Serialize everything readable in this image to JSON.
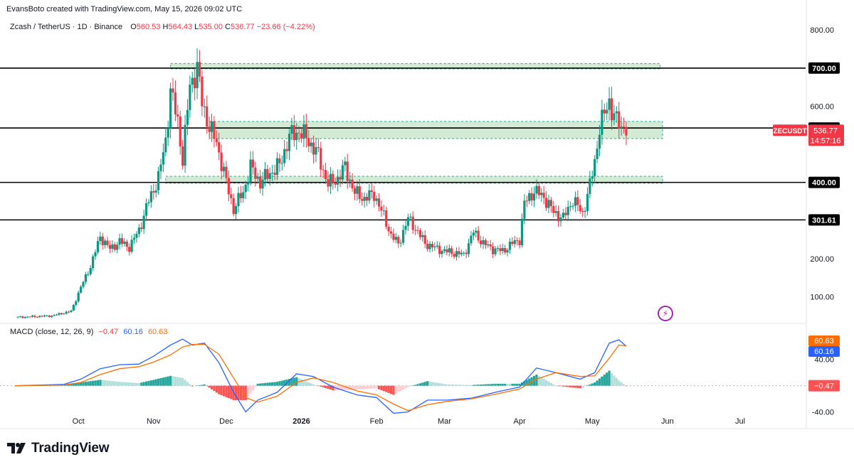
{
  "attribution": "EvansBoto created with TradingView.com, May 15, 2026 09:02 UTC",
  "legend": {
    "symbol": "Zcash / TetherUS · 1D · Binance",
    "open_label": "O",
    "open": "560.53",
    "high_label": "H",
    "high": "564.43",
    "low_label": "L",
    "low": "535.00",
    "close_label": "C",
    "close": "536.77",
    "change": "−23.66 (−4.22%)"
  },
  "macd_legend": {
    "title": "MACD (close, 12, 26, 9)",
    "hist": "−0.47",
    "macd": "60.16",
    "signal": "60.63"
  },
  "brand": {
    "name": "TradingView"
  },
  "chart_data": [
    {
      "type": "candlestick",
      "title": "Zcash / TetherUS · 1D · Binance",
      "x_ticks": [
        "Oct",
        "Nov",
        "Dec",
        "2026",
        "Feb",
        "Mar",
        "Apr",
        "May",
        "Jun",
        "Jul"
      ],
      "y_ticks": [
        100,
        200,
        600,
        800
      ],
      "ylim": [
        30,
        860
      ],
      "grid": false,
      "colors": {
        "up": "#089981",
        "down": "#f23645"
      },
      "levels": [
        {
          "label": "700.00",
          "value": 700
        },
        {
          "label": "542.80",
          "value": 542.8
        },
        {
          "label": "400.00",
          "value": 400
        },
        {
          "label": "301.61",
          "value": 301.61
        }
      ],
      "zones": [
        {
          "from": 698,
          "to": 712
        },
        {
          "from": 515,
          "to": 560
        },
        {
          "from": 398,
          "to": 416
        }
      ],
      "current_price": {
        "symbol": "ZECUSDT",
        "price": "536.77",
        "countdown": "14:57:16"
      },
      "close_path": [
        {
          "x": "2025-09-05",
          "y": 46
        },
        {
          "x": "2025-09-20",
          "y": 50
        },
        {
          "x": "2025-09-28",
          "y": 62
        },
        {
          "x": "2025-10-02",
          "y": 125
        },
        {
          "x": "2025-10-06",
          "y": 180
        },
        {
          "x": "2025-10-10",
          "y": 258
        },
        {
          "x": "2025-10-14",
          "y": 225
        },
        {
          "x": "2025-10-18",
          "y": 245
        },
        {
          "x": "2025-10-22",
          "y": 230
        },
        {
          "x": "2025-10-26",
          "y": 275
        },
        {
          "x": "2025-10-30",
          "y": 352
        },
        {
          "x": "2025-11-03",
          "y": 412
        },
        {
          "x": "2025-11-06",
          "y": 510
        },
        {
          "x": "2025-11-08",
          "y": 640
        },
        {
          "x": "2025-11-11",
          "y": 560
        },
        {
          "x": "2025-11-13",
          "y": 460
        },
        {
          "x": "2025-11-16",
          "y": 655
        },
        {
          "x": "2025-11-19",
          "y": 700
        },
        {
          "x": "2025-11-21",
          "y": 610
        },
        {
          "x": "2025-11-24",
          "y": 545
        },
        {
          "x": "2025-11-27",
          "y": 505
        },
        {
          "x": "2025-12-01",
          "y": 400
        },
        {
          "x": "2025-12-04",
          "y": 330
        },
        {
          "x": "2025-12-08",
          "y": 375
        },
        {
          "x": "2025-12-11",
          "y": 440
        },
        {
          "x": "2025-12-15",
          "y": 400
        },
        {
          "x": "2025-12-19",
          "y": 425
        },
        {
          "x": "2025-12-23",
          "y": 445
        },
        {
          "x": "2025-12-27",
          "y": 520
        },
        {
          "x": "2025-12-31",
          "y": 535
        },
        {
          "x": "2026-01-04",
          "y": 510
        },
        {
          "x": "2026-01-08",
          "y": 470
        },
        {
          "x": "2026-01-12",
          "y": 395
        },
        {
          "x": "2026-01-16",
          "y": 410
        },
        {
          "x": "2026-01-19",
          "y": 440
        },
        {
          "x": "2026-01-23",
          "y": 372
        },
        {
          "x": "2026-01-27",
          "y": 358
        },
        {
          "x": "2026-01-31",
          "y": 370
        },
        {
          "x": "2026-02-04",
          "y": 310
        },
        {
          "x": "2026-02-07",
          "y": 262
        },
        {
          "x": "2026-02-10",
          "y": 238
        },
        {
          "x": "2026-02-14",
          "y": 305
        },
        {
          "x": "2026-02-17",
          "y": 280
        },
        {
          "x": "2026-02-21",
          "y": 240
        },
        {
          "x": "2026-02-25",
          "y": 228
        },
        {
          "x": "2026-03-01",
          "y": 220
        },
        {
          "x": "2026-03-05",
          "y": 215
        },
        {
          "x": "2026-03-09",
          "y": 210
        },
        {
          "x": "2026-03-13",
          "y": 270
        },
        {
          "x": "2026-03-17",
          "y": 240
        },
        {
          "x": "2026-03-21",
          "y": 225
        },
        {
          "x": "2026-03-25",
          "y": 220
        },
        {
          "x": "2026-03-29",
          "y": 240
        },
        {
          "x": "2026-04-01",
          "y": 250
        },
        {
          "x": "2026-04-03",
          "y": 345
        },
        {
          "x": "2026-04-07",
          "y": 378
        },
        {
          "x": "2026-04-11",
          "y": 362
        },
        {
          "x": "2026-04-15",
          "y": 322
        },
        {
          "x": "2026-04-19",
          "y": 306
        },
        {
          "x": "2026-04-23",
          "y": 355
        },
        {
          "x": "2026-04-27",
          "y": 318
        },
        {
          "x": "2026-04-30",
          "y": 392
        },
        {
          "x": "2026-05-02",
          "y": 455
        },
        {
          "x": "2026-05-04",
          "y": 545
        },
        {
          "x": "2026-05-06",
          "y": 578
        },
        {
          "x": "2026-05-08",
          "y": 615
        },
        {
          "x": "2026-05-10",
          "y": 570
        },
        {
          "x": "2026-05-12",
          "y": 555
        },
        {
          "x": "2026-05-13",
          "y": 540
        },
        {
          "x": "2026-05-14",
          "y": 560.53
        },
        {
          "x": "2026-05-15",
          "y": 536.77
        }
      ]
    },
    {
      "type": "line",
      "title": "MACD (close, 12, 26, 9)",
      "y_ticks": [
        40,
        -40
      ],
      "ylim": [
        -60,
        95
      ],
      "series": [
        {
          "name": "MACD",
          "color": "#2962ff",
          "values": [
            {
              "x": "2025-09-05",
              "y": 0
            },
            {
              "x": "2025-09-25",
              "y": 2
            },
            {
              "x": "2025-10-02",
              "y": 10
            },
            {
              "x": "2025-10-10",
              "y": 26
            },
            {
              "x": "2025-10-18",
              "y": 32
            },
            {
              "x": "2025-10-26",
              "y": 33
            },
            {
              "x": "2025-11-01",
              "y": 45
            },
            {
              "x": "2025-11-08",
              "y": 62
            },
            {
              "x": "2025-11-13",
              "y": 71
            },
            {
              "x": "2025-11-17",
              "y": 62
            },
            {
              "x": "2025-11-22",
              "y": 65
            },
            {
              "x": "2025-11-28",
              "y": 35
            },
            {
              "x": "2025-12-04",
              "y": -10
            },
            {
              "x": "2025-12-09",
              "y": -40
            },
            {
              "x": "2025-12-14",
              "y": -22
            },
            {
              "x": "2025-12-22",
              "y": -10
            },
            {
              "x": "2025-12-30",
              "y": 18
            },
            {
              "x": "2026-01-06",
              "y": 14
            },
            {
              "x": "2026-01-14",
              "y": -2
            },
            {
              "x": "2026-01-24",
              "y": -14
            },
            {
              "x": "2026-02-01",
              "y": -18
            },
            {
              "x": "2026-02-08",
              "y": -42
            },
            {
              "x": "2026-02-14",
              "y": -40
            },
            {
              "x": "2026-02-22",
              "y": -22
            },
            {
              "x": "2026-03-02",
              "y": -22
            },
            {
              "x": "2026-03-12",
              "y": -19
            },
            {
              "x": "2026-03-22",
              "y": -10
            },
            {
              "x": "2026-04-01",
              "y": -2
            },
            {
              "x": "2026-04-08",
              "y": 27
            },
            {
              "x": "2026-04-16",
              "y": 20
            },
            {
              "x": "2026-04-26",
              "y": 10
            },
            {
              "x": "2026-05-02",
              "y": 20
            },
            {
              "x": "2026-05-08",
              "y": 65
            },
            {
              "x": "2026-05-12",
              "y": 70
            },
            {
              "x": "2026-05-15",
              "y": 60.16
            }
          ]
        },
        {
          "name": "Signal",
          "color": "#ff6d00",
          "values": [
            {
              "x": "2025-09-05",
              "y": 0
            },
            {
              "x": "2025-09-25",
              "y": 1
            },
            {
              "x": "2025-10-02",
              "y": 5
            },
            {
              "x": "2025-10-10",
              "y": 17
            },
            {
              "x": "2025-10-18",
              "y": 26
            },
            {
              "x": "2025-10-26",
              "y": 29
            },
            {
              "x": "2025-11-01",
              "y": 36
            },
            {
              "x": "2025-11-08",
              "y": 47
            },
            {
              "x": "2025-11-13",
              "y": 59
            },
            {
              "x": "2025-11-17",
              "y": 63
            },
            {
              "x": "2025-11-22",
              "y": 63
            },
            {
              "x": "2025-11-28",
              "y": 48
            },
            {
              "x": "2025-12-04",
              "y": 12
            },
            {
              "x": "2025-12-09",
              "y": -18
            },
            {
              "x": "2025-12-14",
              "y": -25
            },
            {
              "x": "2025-12-22",
              "y": -16
            },
            {
              "x": "2025-12-30",
              "y": 5
            },
            {
              "x": "2026-01-06",
              "y": 12
            },
            {
              "x": "2026-01-14",
              "y": 5
            },
            {
              "x": "2026-01-24",
              "y": -8
            },
            {
              "x": "2026-02-01",
              "y": -14
            },
            {
              "x": "2026-02-08",
              "y": -28
            },
            {
              "x": "2026-02-14",
              "y": -38
            },
            {
              "x": "2026-02-22",
              "y": -29
            },
            {
              "x": "2026-03-02",
              "y": -24
            },
            {
              "x": "2026-03-12",
              "y": -20
            },
            {
              "x": "2026-03-22",
              "y": -13
            },
            {
              "x": "2026-04-01",
              "y": -5
            },
            {
              "x": "2026-04-08",
              "y": 10
            },
            {
              "x": "2026-04-16",
              "y": 20
            },
            {
              "x": "2026-04-26",
              "y": 14
            },
            {
              "x": "2026-05-02",
              "y": 15
            },
            {
              "x": "2026-05-08",
              "y": 42
            },
            {
              "x": "2026-05-12",
              "y": 62
            },
            {
              "x": "2026-05-15",
              "y": 60.63
            }
          ]
        }
      ]
    }
  ]
}
